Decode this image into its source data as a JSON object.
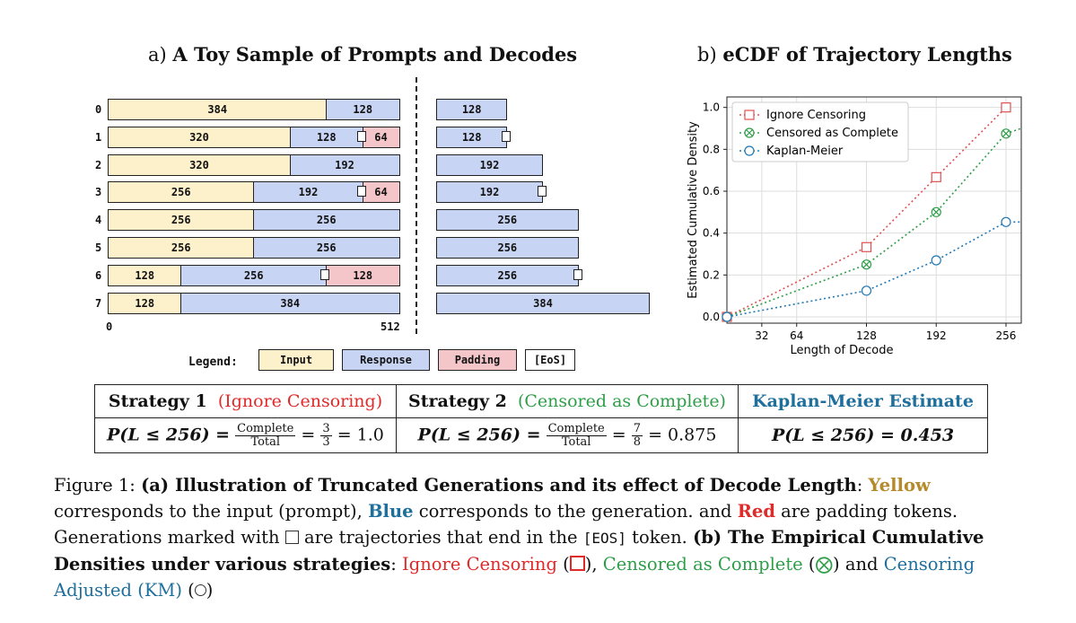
{
  "panel_a": {
    "prefix": "a)",
    "title": "A Toy Sample of Prompts and Decodes",
    "rows": [
      {
        "label": "0",
        "left": [
          {
            "kind": "input",
            "value": "384"
          },
          {
            "kind": "response",
            "value": "128"
          }
        ],
        "right": "128",
        "eos": false,
        "padding": false
      },
      {
        "label": "1",
        "left": [
          {
            "kind": "input",
            "value": "320"
          },
          {
            "kind": "response",
            "value": "128"
          },
          {
            "kind": "padding",
            "value": "64"
          }
        ],
        "right": "128",
        "eos": true
      },
      {
        "label": "2",
        "left": [
          {
            "kind": "input",
            "value": "320"
          },
          {
            "kind": "response",
            "value": "192"
          }
        ],
        "right": "192",
        "eos": false
      },
      {
        "label": "3",
        "left": [
          {
            "kind": "input",
            "value": "256"
          },
          {
            "kind": "response",
            "value": "192"
          },
          {
            "kind": "padding",
            "value": "64"
          }
        ],
        "right": "192",
        "eos": true
      },
      {
        "label": "4",
        "left": [
          {
            "kind": "input",
            "value": "256"
          },
          {
            "kind": "response",
            "value": "256"
          }
        ],
        "right": "256",
        "eos": false
      },
      {
        "label": "5",
        "left": [
          {
            "kind": "input",
            "value": "256"
          },
          {
            "kind": "response",
            "value": "256"
          }
        ],
        "right": "256",
        "eos": false
      },
      {
        "label": "6",
        "left": [
          {
            "kind": "input",
            "value": "128"
          },
          {
            "kind": "response",
            "value": "256"
          },
          {
            "kind": "padding",
            "value": "128"
          }
        ],
        "right": "256",
        "eos": true
      },
      {
        "label": "7",
        "left": [
          {
            "kind": "input",
            "value": "128"
          },
          {
            "kind": "response",
            "value": "384"
          }
        ],
        "right": "384",
        "eos": false
      }
    ],
    "axis_min": "0",
    "axis_max": "512",
    "legend": {
      "title": "Legend:",
      "input": "Input",
      "response": "Response",
      "padding": "Padding",
      "eos": "[EoS]"
    }
  },
  "panel_b": {
    "prefix": "b)",
    "title": "eCDF of Trajectory Lengths",
    "chart_data": {
      "type": "line",
      "xlabel": "Length of Decode",
      "ylabel": "Estimated Cumulative Density",
      "xlim": [
        0,
        270
      ],
      "ylim": [
        -0.03,
        1.05
      ],
      "xticks": [
        32,
        64,
        128,
        192,
        256
      ],
      "yticks": [
        "0.0",
        "0.2",
        "0.4",
        "0.6",
        "0.8",
        "1.0"
      ],
      "grid": true,
      "legend_position": "top-left",
      "series": [
        {
          "name": "Ignore Censoring",
          "color": "#e05050",
          "marker": "square",
          "x": [
            0,
            128,
            192,
            256
          ],
          "y": [
            0.0,
            0.333,
            0.667,
            1.0
          ]
        },
        {
          "name": "Censored as Complete",
          "color": "#2e9e48",
          "marker": "x-circle",
          "x": [
            0,
            128,
            192,
            256,
            270
          ],
          "y": [
            0.0,
            0.25,
            0.5,
            0.875,
            0.9
          ]
        },
        {
          "name": "Kaplan-Meier",
          "color": "#1f77b4",
          "marker": "circle",
          "x": [
            0,
            128,
            192,
            256,
            270
          ],
          "y": [
            0.0,
            0.125,
            0.27,
            0.453,
            0.453
          ]
        }
      ]
    }
  },
  "table": {
    "s1_title": "Strategy 1",
    "s1_sub": "(Ignore Censoring)",
    "s2_title": "Strategy 2",
    "s2_sub": "(Censored as Complete)",
    "km_title": "Kaplan-Meier Estimate",
    "p_expr": "P(L ≤ 256) =",
    "complete": "Complete",
    "total": "Total",
    "s1_num": "3",
    "s1_den": "3",
    "s1_val": "= 1.0",
    "s2_num": "7",
    "s2_den": "8",
    "s2_val": "= 0.875",
    "km_expr": "P(L ≤ 256) = 0.453"
  },
  "caption": {
    "fig": "Figure 1:",
    "a_bold": "(a) Illustration of Truncated Generations and its effect of Decode Length",
    "yellow": "Yellow",
    "t1": "corresponds to the input (prompt),",
    "blue": "Blue",
    "t2": "corresponds to the generation.  and",
    "red": "Red",
    "t3": "are padding tokens.",
    "t4": "Generations marked with",
    "t5": "are trajectories that end in the",
    "eos": "[EOS]",
    "t6": "token.",
    "b_bold": "(b) The Empirical Cumulative Densities under various strategies",
    "ic": "Ignore Censoring",
    "cc": "Censored as Complete",
    "and": "and",
    "ca": "Censoring Adjusted (KM)"
  }
}
